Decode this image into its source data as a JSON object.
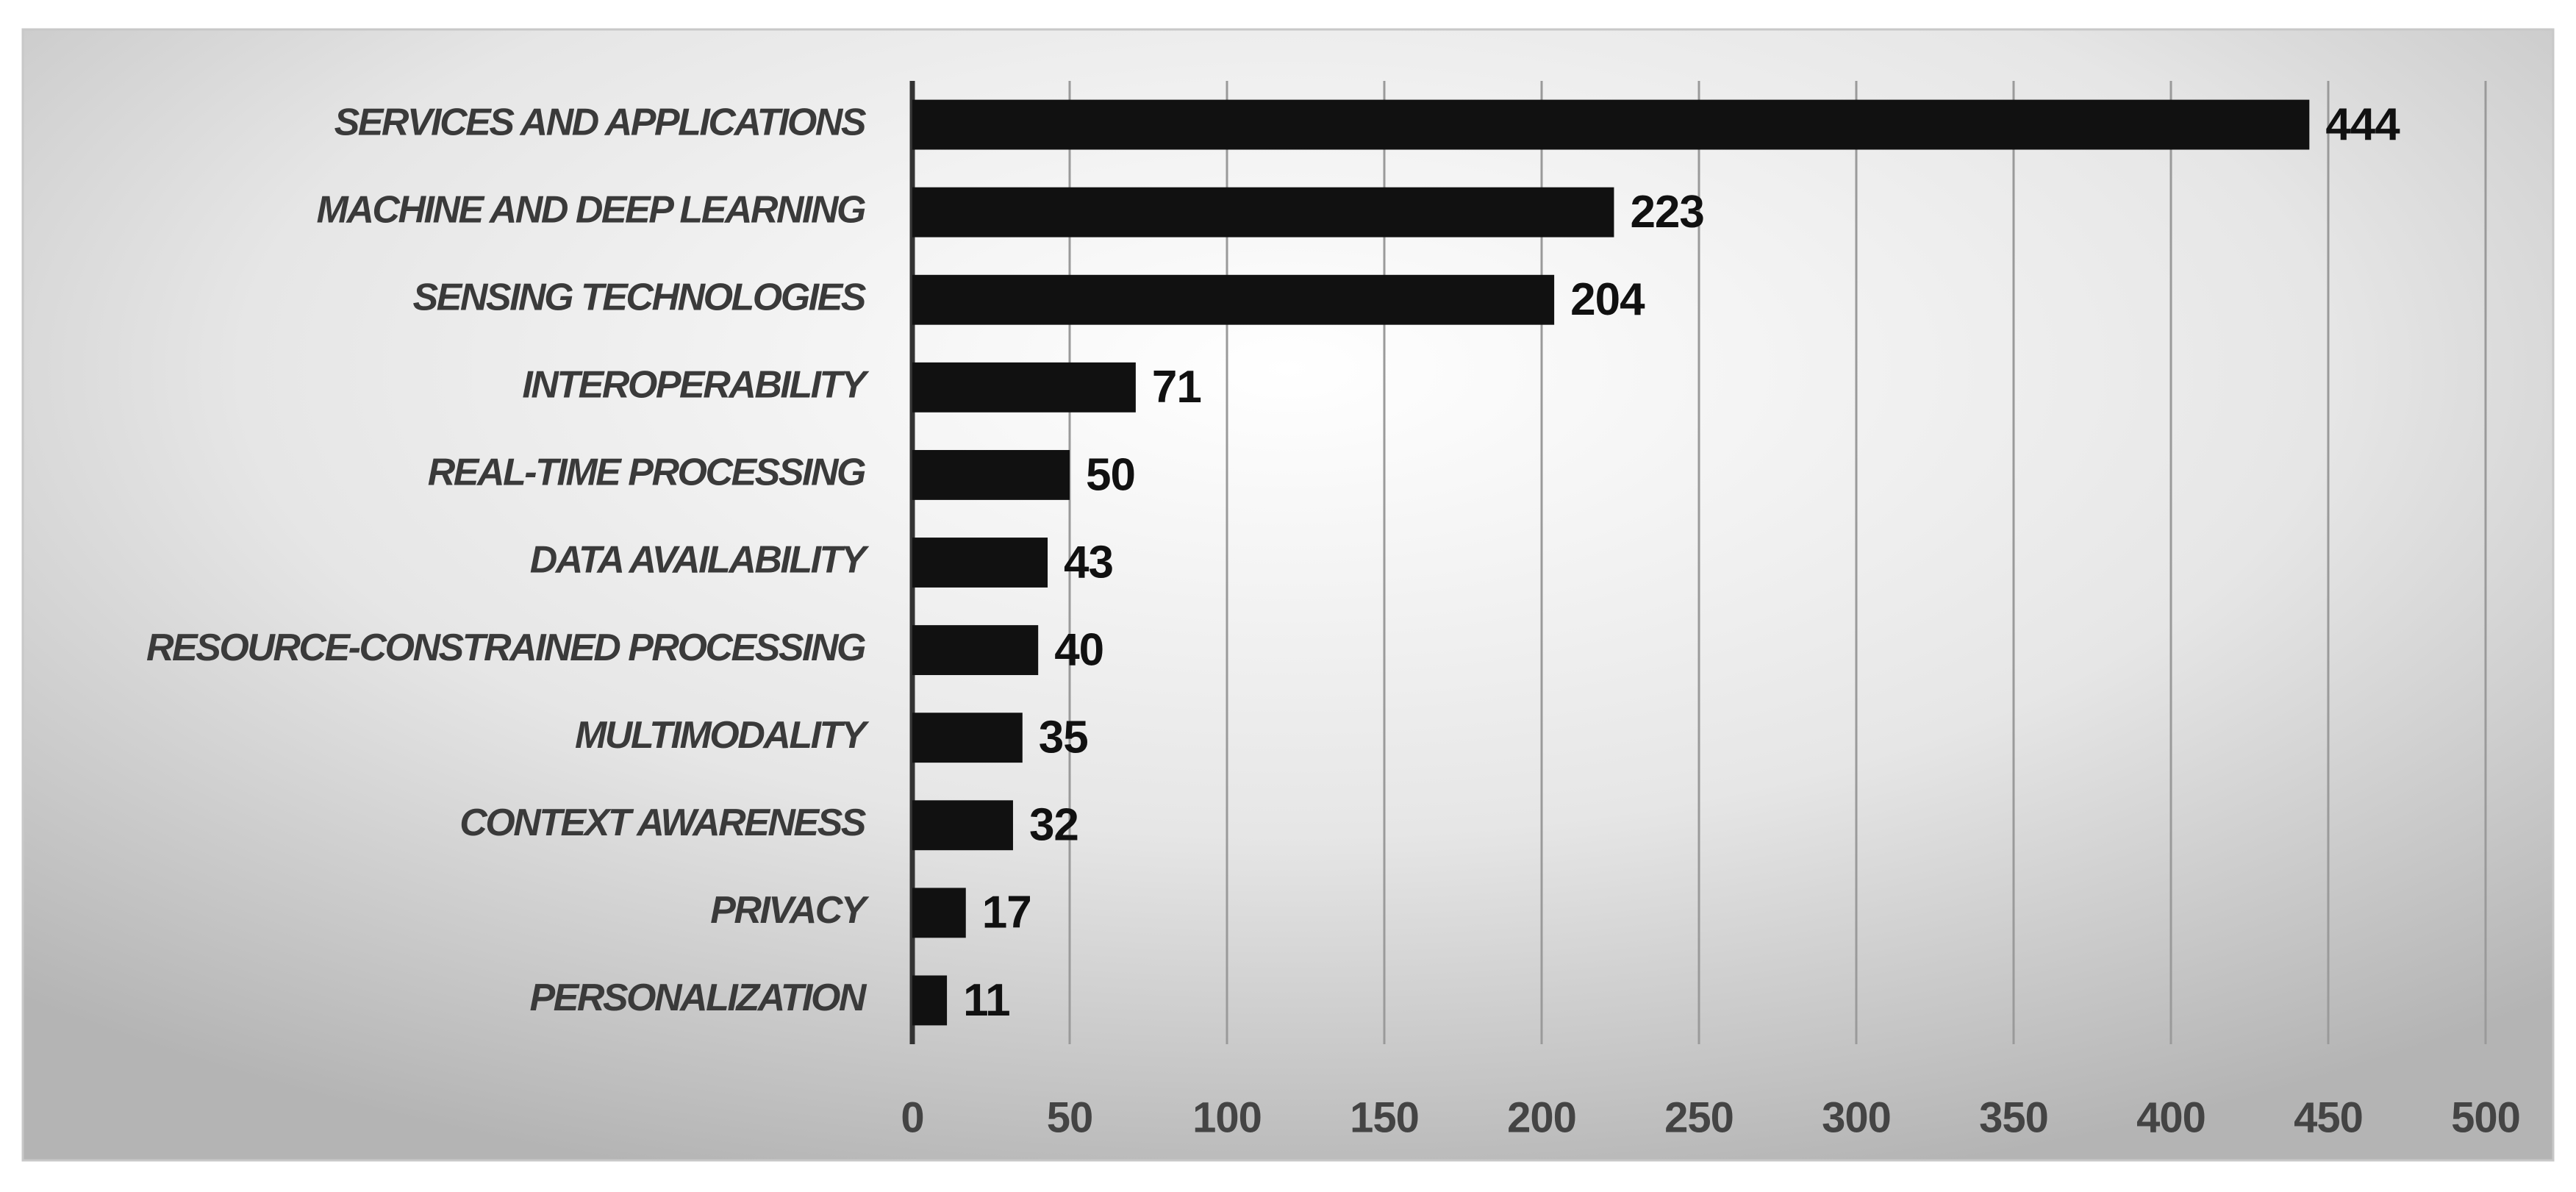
{
  "chart_data": {
    "type": "bar",
    "orientation": "horizontal",
    "categories": [
      "SERVICES AND APPLICATIONS",
      "MACHINE AND DEEP LEARNING",
      "SENSING TECHNOLOGIES",
      "INTEROPERABILITY",
      "REAL-TIME PROCESSING",
      "DATA AVAILABILITY",
      "RESOURCE-CONSTRAINED PROCESSING",
      "MULTIMODALITY",
      "CONTEXT AWARENESS",
      "PRIVACY",
      "PERSONALIZATION"
    ],
    "values": [
      444,
      223,
      204,
      71,
      50,
      43,
      40,
      35,
      32,
      17,
      11
    ],
    "color": "#111111",
    "xlim": [
      0,
      500
    ],
    "xticks": [
      0,
      50,
      100,
      150,
      200,
      250,
      300,
      350,
      400,
      450,
      500
    ],
    "grid": true
  }
}
